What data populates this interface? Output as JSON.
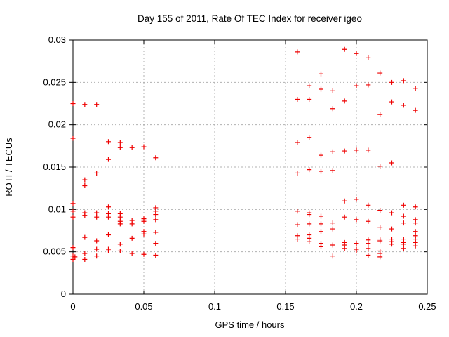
{
  "chart": {
    "title": "Day 155 of 2011, Rate Of TEC Index for receiver igeo",
    "xlabel": "GPS time / hours",
    "ylabel": "ROTI / TECUs"
  },
  "chart_data": {
    "type": "scatter",
    "title": "Day 155 of 2011, Rate Of TEC Index for receiver igeo",
    "xlabel": "GPS time / hours",
    "ylabel": "ROTI / TECUs",
    "xlim": [
      0,
      0.25
    ],
    "ylim": [
      0,
      0.03
    ],
    "xticks": [
      0,
      0.05,
      0.1,
      0.15,
      0.2,
      0.25
    ],
    "yticks": [
      0,
      0.005,
      0.01,
      0.015,
      0.02,
      0.025,
      0.03
    ],
    "xtick_labels": [
      "0",
      "0.05",
      "0.1",
      "0.15",
      "0.2",
      "0.25"
    ],
    "ytick_labels": [
      "0",
      "0.005",
      "0.01",
      "0.015",
      "0.02",
      "0.025",
      "0.03"
    ],
    "grid": true,
    "grid_color": "#b0b0b0",
    "border_color": "#000000",
    "marker": "plus",
    "marker_color": "#ee0000",
    "legend": "none",
    "series": [
      {
        "name": "ROTI",
        "points": [
          [
            0,
            0.0225
          ],
          [
            0,
            0.0184
          ],
          [
            0,
            0.0107
          ],
          [
            0,
            0.0098
          ],
          [
            0,
            0.0091
          ],
          [
            0,
            0.0055
          ],
          [
            0,
            0.0045
          ],
          [
            0.0014,
            0.0044
          ],
          [
            0,
            0.0041
          ],
          [
            0.00833,
            0.0224
          ],
          [
            0.00833,
            0.0135
          ],
          [
            0.00833,
            0.0128
          ],
          [
            0.00833,
            0.0096
          ],
          [
            0.00833,
            0.0093
          ],
          [
            0.00833,
            0.0067
          ],
          [
            0.00833,
            0.0048
          ],
          [
            0.00833,
            0.0041
          ],
          [
            0.01667,
            0.0224
          ],
          [
            0.01667,
            0.0143
          ],
          [
            0.01667,
            0.0096
          ],
          [
            0.01667,
            0.0091
          ],
          [
            0.01667,
            0.0063
          ],
          [
            0.01667,
            0.0053
          ],
          [
            0.01667,
            0.0045
          ],
          [
            0.025,
            0.018
          ],
          [
            0.025,
            0.0159
          ],
          [
            0.025,
            0.0103
          ],
          [
            0.025,
            0.0095
          ],
          [
            0.025,
            0.0091
          ],
          [
            0.025,
            0.007
          ],
          [
            0.025,
            0.0053
          ],
          [
            0.025,
            0.0051
          ],
          [
            0.03333,
            0.0179
          ],
          [
            0.03333,
            0.0173
          ],
          [
            0.03333,
            0.0095
          ],
          [
            0.03333,
            0.0091
          ],
          [
            0.03333,
            0.0086
          ],
          [
            0.03333,
            0.0083
          ],
          [
            0.03333,
            0.0059
          ],
          [
            0.03333,
            0.0051
          ],
          [
            0.04167,
            0.0173
          ],
          [
            0.04167,
            0.0087
          ],
          [
            0.04167,
            0.0083
          ],
          [
            0.04167,
            0.0066
          ],
          [
            0.04167,
            0.0048
          ],
          [
            0.05,
            0.0174
          ],
          [
            0.05,
            0.0089
          ],
          [
            0.05,
            0.0086
          ],
          [
            0.05,
            0.0074
          ],
          [
            0.05,
            0.0071
          ],
          [
            0.05,
            0.0047
          ],
          [
            0.05833,
            0.0161
          ],
          [
            0.05833,
            0.0102
          ],
          [
            0.05833,
            0.0098
          ],
          [
            0.05833,
            0.0094
          ],
          [
            0.05833,
            0.0088
          ],
          [
            0.05833,
            0.0073
          ],
          [
            0.05833,
            0.006
          ],
          [
            0.05833,
            0.0046
          ],
          [
            0.15833,
            0.0286
          ],
          [
            0.15833,
            0.023
          ],
          [
            0.15833,
            0.0179
          ],
          [
            0.15833,
            0.0143
          ],
          [
            0.15833,
            0.0098
          ],
          [
            0.15833,
            0.0082
          ],
          [
            0.15833,
            0.0069
          ],
          [
            0.15833,
            0.0065
          ],
          [
            0.16667,
            0.0246
          ],
          [
            0.16667,
            0.023
          ],
          [
            0.16667,
            0.0185
          ],
          [
            0.16667,
            0.0147
          ],
          [
            0.16667,
            0.0096
          ],
          [
            0.16667,
            0.0094
          ],
          [
            0.16667,
            0.0083
          ],
          [
            0.16667,
            0.007
          ],
          [
            0.16667,
            0.0066
          ],
          [
            0.16667,
            0.0062
          ],
          [
            0.175,
            0.026
          ],
          [
            0.175,
            0.0242
          ],
          [
            0.175,
            0.0164
          ],
          [
            0.175,
            0.0145
          ],
          [
            0.175,
            0.0092
          ],
          [
            0.175,
            0.0083
          ],
          [
            0.175,
            0.0074
          ],
          [
            0.175,
            0.006
          ],
          [
            0.175,
            0.0056
          ],
          [
            0.18333,
            0.024
          ],
          [
            0.18333,
            0.0219
          ],
          [
            0.18333,
            0.0168
          ],
          [
            0.18333,
            0.0146
          ],
          [
            0.18333,
            0.0084
          ],
          [
            0.18333,
            0.0077
          ],
          [
            0.18333,
            0.0058
          ],
          [
            0.18333,
            0.0045
          ],
          [
            0.19167,
            0.0289
          ],
          [
            0.19167,
            0.0228
          ],
          [
            0.19167,
            0.0169
          ],
          [
            0.19167,
            0.011
          ],
          [
            0.19167,
            0.0091
          ],
          [
            0.19167,
            0.0061
          ],
          [
            0.19167,
            0.0058
          ],
          [
            0.19167,
            0.0054
          ],
          [
            0.2,
            0.0284
          ],
          [
            0.2,
            0.0246
          ],
          [
            0.2,
            0.017
          ],
          [
            0.2,
            0.0112
          ],
          [
            0.2,
            0.0088
          ],
          [
            0.2,
            0.006
          ],
          [
            0.2,
            0.0053
          ],
          [
            0.2,
            0.0051
          ],
          [
            0.20833,
            0.0279
          ],
          [
            0.20833,
            0.0247
          ],
          [
            0.20833,
            0.017
          ],
          [
            0.20833,
            0.0105
          ],
          [
            0.20833,
            0.0086
          ],
          [
            0.20833,
            0.0064
          ],
          [
            0.20833,
            0.006
          ],
          [
            0.20833,
            0.0054
          ],
          [
            0.20833,
            0.0046
          ],
          [
            0.21667,
            0.0261
          ],
          [
            0.21667,
            0.0212
          ],
          [
            0.21667,
            0.0151
          ],
          [
            0.21667,
            0.0099
          ],
          [
            0.21667,
            0.0079
          ],
          [
            0.21667,
            0.0065
          ],
          [
            0.21667,
            0.0063
          ],
          [
            0.21667,
            0.0051
          ],
          [
            0.21667,
            0.0048
          ],
          [
            0.21667,
            0.0044
          ],
          [
            0.225,
            0.025
          ],
          [
            0.225,
            0.0227
          ],
          [
            0.225,
            0.0155
          ],
          [
            0.225,
            0.0096
          ],
          [
            0.225,
            0.0077
          ],
          [
            0.225,
            0.0065
          ],
          [
            0.225,
            0.0062
          ],
          [
            0.225,
            0.0059
          ],
          [
            0.23333,
            0.0252
          ],
          [
            0.23333,
            0.0223
          ],
          [
            0.23333,
            0.0105
          ],
          [
            0.23333,
            0.0092
          ],
          [
            0.23333,
            0.0084
          ],
          [
            0.23333,
            0.0065
          ],
          [
            0.23333,
            0.0061
          ],
          [
            0.23333,
            0.0059
          ],
          [
            0.23333,
            0.0054
          ],
          [
            0.24167,
            0.0243
          ],
          [
            0.24167,
            0.0217
          ],
          [
            0.24167,
            0.0103
          ],
          [
            0.24167,
            0.0088
          ],
          [
            0.24167,
            0.0084
          ],
          [
            0.24167,
            0.0074
          ],
          [
            0.24167,
            0.0069
          ],
          [
            0.24167,
            0.0065
          ],
          [
            0.24167,
            0.0061
          ],
          [
            0.24167,
            0.0057
          ]
        ]
      }
    ]
  }
}
